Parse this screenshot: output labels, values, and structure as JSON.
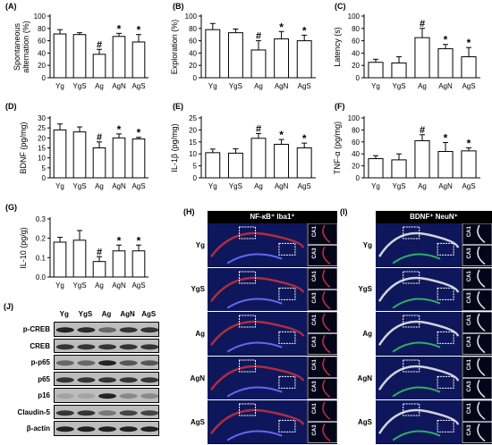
{
  "categories": [
    "Yg",
    "YgS",
    "Ag",
    "AgN",
    "AgS"
  ],
  "chart_data": [
    {
      "type": "bar",
      "panel": "(A)",
      "ylabel": "Spontaneous alternation (%)",
      "ylim": [
        0,
        100
      ],
      "yticks": [
        0,
        20,
        40,
        60,
        80,
        100
      ],
      "categories": [
        "Yg",
        "YgS",
        "Ag",
        "AgN",
        "AgS"
      ],
      "values": [
        71,
        70,
        38,
        67,
        58
      ],
      "errors": [
        7,
        3,
        8,
        5,
        12
      ],
      "marks": [
        "",
        "",
        "#",
        "*",
        "*"
      ]
    },
    {
      "type": "bar",
      "panel": "(B)",
      "ylabel": "Exploration (%)",
      "ylim": [
        0,
        100
      ],
      "yticks": [
        0,
        20,
        40,
        60,
        80,
        100
      ],
      "categories": [
        "Yg",
        "YgS",
        "Ag",
        "AgN",
        "AgS"
      ],
      "values": [
        78,
        73,
        45,
        63,
        60
      ],
      "errors": [
        10,
        6,
        15,
        12,
        9
      ],
      "marks": [
        "",
        "",
        "#",
        "*",
        "*"
      ]
    },
    {
      "type": "bar",
      "panel": "(C)",
      "ylabel": "Latency (s)",
      "ylim": [
        0,
        100
      ],
      "yticks": [
        0,
        20,
        40,
        60,
        80,
        100
      ],
      "categories": [
        "Yg",
        "YgS",
        "Ag",
        "AgN",
        "AgS"
      ],
      "values": [
        25,
        24,
        65,
        47,
        34
      ],
      "errors": [
        5,
        10,
        15,
        7,
        15
      ],
      "marks": [
        "",
        "",
        "#",
        "*",
        "*"
      ]
    },
    {
      "type": "bar",
      "panel": "(D)",
      "ylabel": "BDNF (pg/mg)",
      "ylim": [
        0,
        30
      ],
      "yticks": [
        0,
        5,
        10,
        15,
        20,
        25,
        30
      ],
      "categories": [
        "Yg",
        "YgS",
        "Ag",
        "AgN",
        "AgS"
      ],
      "values": [
        24,
        23,
        15,
        20,
        19.5
      ],
      "errors": [
        3,
        2.5,
        3,
        2,
        0.8
      ],
      "marks": [
        "",
        "",
        "#",
        "*",
        "*"
      ]
    },
    {
      "type": "bar",
      "panel": "(E)",
      "ylabel": "IL-1β (pg/mg)",
      "ylim": [
        0,
        25
      ],
      "yticks": [
        0,
        5,
        10,
        15,
        20,
        25
      ],
      "categories": [
        "Yg",
        "YgS",
        "Ag",
        "AgN",
        "AgS"
      ],
      "values": [
        10.5,
        10.3,
        16.5,
        14,
        12.5
      ],
      "errors": [
        1.5,
        1.8,
        2,
        2,
        2
      ],
      "marks": [
        "",
        "",
        "#",
        "*",
        "*"
      ]
    },
    {
      "type": "bar",
      "panel": "(F)",
      "ylabel": "TNF-α (pg/mg)",
      "ylim": [
        0,
        100
      ],
      "yticks": [
        0,
        20,
        40,
        60,
        80,
        100
      ],
      "categories": [
        "Yg",
        "YgS",
        "Ag",
        "AgN",
        "AgS"
      ],
      "values": [
        32,
        30,
        62,
        44,
        45
      ],
      "errors": [
        5,
        10,
        10,
        15,
        5
      ],
      "marks": [
        "",
        "",
        "#",
        "*",
        "*"
      ]
    },
    {
      "type": "bar",
      "panel": "(G)",
      "ylabel": "IL-10 (pg/g)",
      "ylim": [
        0,
        0.3
      ],
      "yticks": [
        0.0,
        0.1,
        0.2,
        0.3
      ],
      "tickDecimals": 1,
      "categories": [
        "Yg",
        "YgS",
        "Ag",
        "AgN",
        "AgS"
      ],
      "values": [
        0.18,
        0.19,
        0.08,
        0.135,
        0.135
      ],
      "errors": [
        0.025,
        0.05,
        0.025,
        0.03,
        0.03
      ],
      "marks": [
        "",
        "",
        "#",
        "*",
        "*"
      ]
    }
  ],
  "panel_h": {
    "letter": "(H)",
    "title": "NF-κB⁺ Iba1⁺",
    "rows": [
      "Yg",
      "YgS",
      "Ag",
      "AgN",
      "AgS"
    ],
    "insets": [
      "CA1",
      "CA3"
    ],
    "colors": {
      "dapi": "#1a2aa8",
      "marker": "#c0303a"
    }
  },
  "panel_i": {
    "letter": "(I)",
    "title": "BDNF⁺ NeuN⁺",
    "rows": [
      "Yg",
      "YgS",
      "Ag",
      "AgN",
      "AgS"
    ],
    "insets": [
      "CA1",
      "CA3"
    ],
    "colors": {
      "dapi": "#1a2aa8",
      "marker": "#33c060"
    }
  },
  "panel_j": {
    "letter": "(J)",
    "lanes": [
      "Yg",
      "YgS",
      "Ag",
      "AgN",
      "AgS"
    ],
    "proteins": [
      "p-CREB",
      "CREB",
      "p-p65",
      "p65",
      "p16",
      "Claudin-5",
      "β-actin"
    ]
  }
}
